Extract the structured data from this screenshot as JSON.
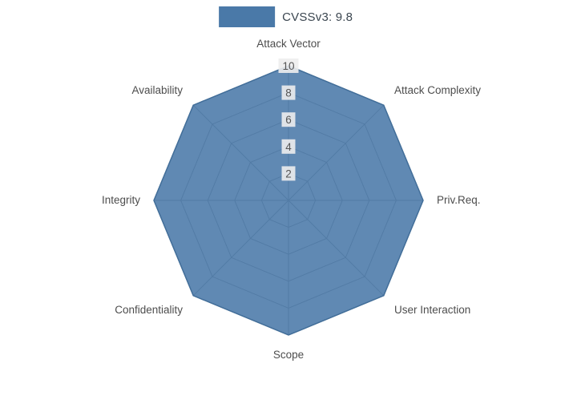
{
  "legend": {
    "label": "CVSSv3: 9.8"
  },
  "chart_data": {
    "type": "radar",
    "title": "",
    "categories": [
      "Attack Vector",
      "Attack Complexity",
      "Priv.Req.",
      "User Interaction",
      "Scope",
      "Confidentiality",
      "Integrity",
      "Availability"
    ],
    "series": [
      {
        "name": "CVSSv3: 9.8",
        "values": [
          10,
          10,
          10,
          10,
          10,
          10,
          10,
          10
        ]
      }
    ],
    "radial_ticks": [
      2,
      4,
      6,
      8,
      10
    ],
    "radial_range": [
      0,
      10
    ],
    "grid": true,
    "legend_position": "top-center",
    "colors": {
      "fill": "#4a79a8",
      "stroke": "#426e99",
      "grid": "#8e8e8e",
      "axis_label": "#4d4d4d",
      "tick_text": "#555555",
      "tick_chip": "#ededed",
      "legend_text": "#3b4650",
      "background": "#ffffff"
    }
  }
}
